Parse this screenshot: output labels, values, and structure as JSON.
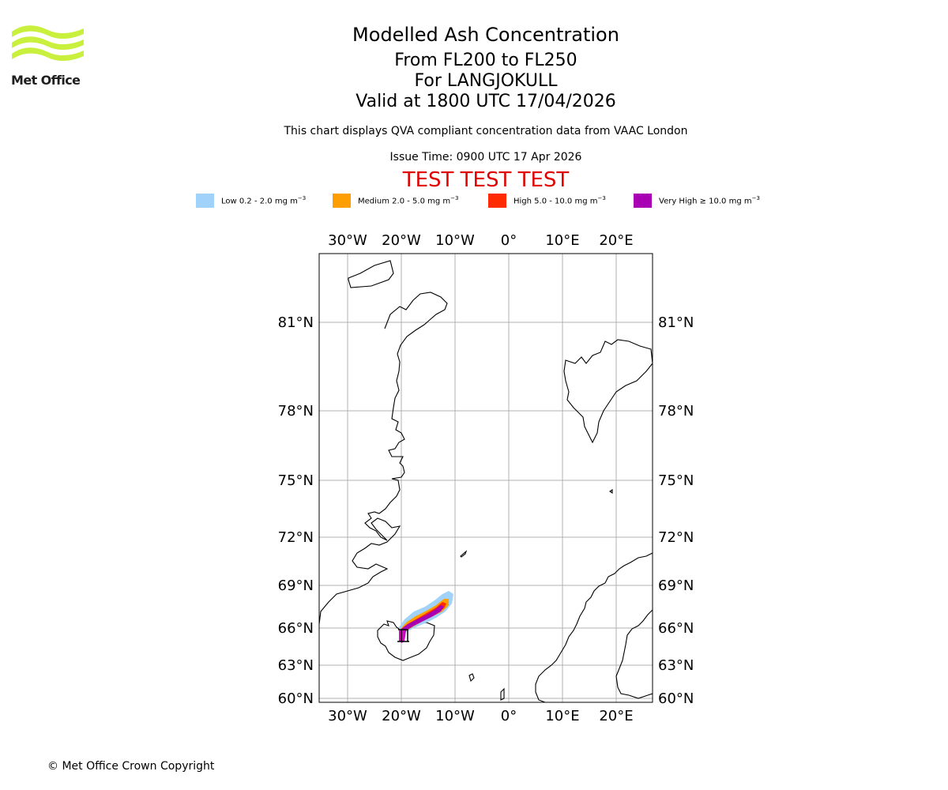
{
  "branding": {
    "logo_text": "Met Office",
    "logo_color": "#c8f03c"
  },
  "header": {
    "title": "Modelled Ash Concentration",
    "levels": "From FL200 to FL250",
    "volcano": "For LANGJOKULL",
    "valid": "Valid at 1800 UTC 17/04/2026",
    "compliance": "This chart displays QVA compliant concentration data from VAAC London",
    "issue_time": "Issue Time: 0900 UTC 17 Apr 2026",
    "test_banner": "TEST TEST TEST",
    "test_color": "#e00000"
  },
  "legend": [
    {
      "label": "Low 0.2 - 2.0 mg m",
      "unit_exp": "−3",
      "color": "#a0d2fa"
    },
    {
      "label": "Medium 2.0 - 5.0 mg m",
      "unit_exp": "−3",
      "color": "#ff9e00"
    },
    {
      "label": "High 5.0 - 10.0 mg m",
      "unit_exp": "−3",
      "color": "#ff2a00"
    },
    {
      "label": "Very High  ≥  10.0 mg m",
      "unit_exp": "−3",
      "color": "#a800b3"
    }
  ],
  "map": {
    "lon_labels": [
      "30°W",
      "20°W",
      "10°W",
      "0°",
      "10°E",
      "20°E"
    ],
    "lat_labels": [
      "81°N",
      "78°N",
      "75°N",
      "72°N",
      "69°N",
      "66°N",
      "63°N",
      "60°N"
    ],
    "coast_color": "#000000",
    "grid_color": "#b0b0b0"
  },
  "footer": {
    "copyright": "© Met Office Crown Copyright"
  }
}
